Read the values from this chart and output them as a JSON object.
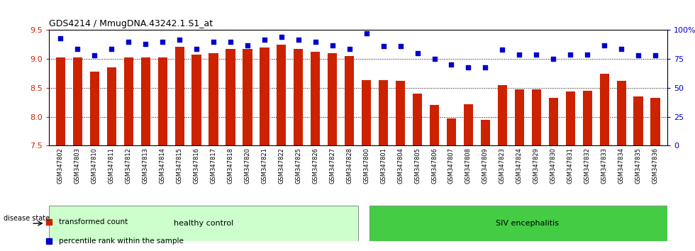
{
  "title": "GDS4214 / MmugDNA.43242.1.S1_at",
  "samples": [
    "GSM347802",
    "GSM347803",
    "GSM347810",
    "GSM347811",
    "GSM347812",
    "GSM347813",
    "GSM347814",
    "GSM347815",
    "GSM347816",
    "GSM347817",
    "GSM347818",
    "GSM347820",
    "GSM347821",
    "GSM347822",
    "GSM347825",
    "GSM347826",
    "GSM347827",
    "GSM347828",
    "GSM347800",
    "GSM347801",
    "GSM347804",
    "GSM347805",
    "GSM347806",
    "GSM347807",
    "GSM347808",
    "GSM347809",
    "GSM347823",
    "GSM347824",
    "GSM347829",
    "GSM347830",
    "GSM347831",
    "GSM347832",
    "GSM347833",
    "GSM347834",
    "GSM347835",
    "GSM347836"
  ],
  "bar_values": [
    9.03,
    9.03,
    8.78,
    8.85,
    9.03,
    9.03,
    9.03,
    9.21,
    9.07,
    9.1,
    9.17,
    9.17,
    9.2,
    9.25,
    9.18,
    9.13,
    9.1,
    9.05,
    8.63,
    8.63,
    8.62,
    8.4,
    8.2,
    7.97,
    8.22,
    7.95,
    8.55,
    8.48,
    8.48,
    8.33,
    8.44,
    8.45,
    8.75,
    8.62,
    8.35,
    8.33
  ],
  "percentile_values": [
    93,
    84,
    78,
    84,
    90,
    88,
    90,
    92,
    84,
    90,
    90,
    87,
    92,
    94,
    92,
    90,
    87,
    84,
    97,
    86,
    86,
    80,
    75,
    70,
    68,
    68,
    83,
    79,
    79,
    75,
    79,
    79,
    87,
    84,
    78,
    78
  ],
  "healthy_count": 18,
  "ylim_left": [
    7.5,
    9.5
  ],
  "ylim_right": [
    0,
    100
  ],
  "yticks_left": [
    7.5,
    8.0,
    8.5,
    9.0,
    9.5
  ],
  "yticks_right": [
    0,
    25,
    50,
    75,
    100
  ],
  "ytick_labels_right": [
    "0",
    "25",
    "50",
    "75",
    "100%"
  ],
  "bar_color": "#cc2200",
  "dot_color": "#0000cc",
  "healthy_color": "#ccffcc",
  "siv_color": "#44cc44",
  "healthy_label": "healthy control",
  "siv_label": "SIV encephalitis",
  "disease_state_label": "disease state",
  "legend_bar_label": "transformed count",
  "legend_dot_label": "percentile rank within the sample",
  "background_color": "#ffffff",
  "xtick_bg_color": "#dddddd"
}
